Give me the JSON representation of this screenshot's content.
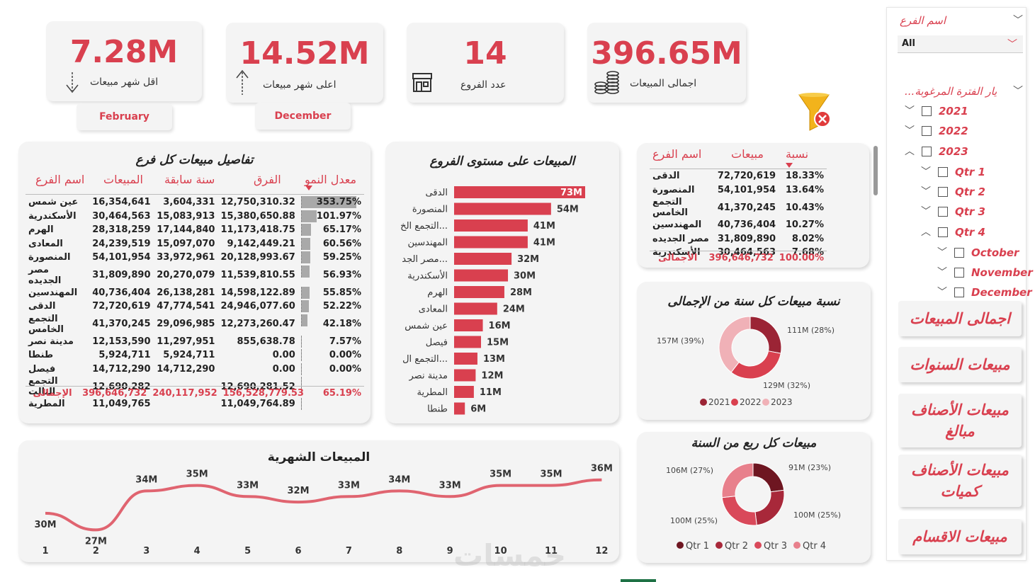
{
  "kpis": {
    "min_month": {
      "value": "7.28M",
      "label": "اقل شهر مبيعات",
      "month": "February"
    },
    "max_month": {
      "value": "14.52M",
      "label": "اعلى شهر مبيعات",
      "month": "December"
    },
    "branches": {
      "value": "14",
      "label": "عدد الفروع"
    },
    "total": {
      "value": "396.65M",
      "label": "اجمالى المبيعات"
    }
  },
  "details": {
    "title": "تفاصيل مبيعات كل فرع",
    "headers": [
      "معدل النمو",
      "الفرق",
      "سنة سابقة",
      "المبيعات",
      "اسم الفرع"
    ],
    "rows": [
      {
        "name": "عين شمس",
        "sales": "16,354,641",
        "prev": "3,604,331",
        "diff": "12,750,310.32",
        "growth": "353.75%",
        "g": 1.0
      },
      {
        "name": "الأسكندرية",
        "sales": "30,464,563",
        "prev": "15,083,913",
        "diff": "15,380,650.88",
        "growth": "101.97%",
        "g": 0.288
      },
      {
        "name": "الهرم",
        "sales": "28,318,259",
        "prev": "17,144,840",
        "diff": "11,173,418.75",
        "growth": "65.17%",
        "g": 0.184
      },
      {
        "name": "المعادى",
        "sales": "24,239,519",
        "prev": "15,097,070",
        "diff": "9,142,449.21",
        "growth": "60.56%",
        "g": 0.171
      },
      {
        "name": "المنصورة",
        "sales": "54,101,954",
        "prev": "33,972,961",
        "diff": "20,128,993.67",
        "growth": "59.25%",
        "g": 0.167
      },
      {
        "name": "مصر الجديده",
        "sales": "31,809,890",
        "prev": "20,270,079",
        "diff": "11,539,810.55",
        "growth": "56.93%",
        "g": 0.161
      },
      {
        "name": "المهندسين",
        "sales": "40,736,404",
        "prev": "26,138,281",
        "diff": "14,598,122.89",
        "growth": "55.85%",
        "g": 0.158
      },
      {
        "name": "الدقى",
        "sales": "72,720,619",
        "prev": "47,774,541",
        "diff": "24,946,077.60",
        "growth": "52.22%",
        "g": 0.148
      },
      {
        "name": "التجمع الخامس",
        "sales": "41,370,245",
        "prev": "29,096,985",
        "diff": "12,273,260.47",
        "growth": "42.18%",
        "g": 0.119
      },
      {
        "name": "مدينة نصر",
        "sales": "12,153,590",
        "prev": "11,297,951",
        "diff": "855,638.78",
        "growth": "7.57%",
        "g": 0.021
      },
      {
        "name": "طنطا",
        "sales": "5,924,711",
        "prev": "5,924,711",
        "diff": "0.00",
        "growth": "0.00%",
        "g": 0
      },
      {
        "name": "فيصل",
        "sales": "14,712,290",
        "prev": "14,712,290",
        "diff": "0.00",
        "growth": "0.00%",
        "g": 0
      },
      {
        "name": "التجمع التالت",
        "sales": "12,690,282",
        "prev": "",
        "diff": "12,690,281.52",
        "growth": "",
        "g": 0
      },
      {
        "name": "المطرية",
        "sales": "11,049,765",
        "prev": "",
        "diff": "11,049,764.89",
        "growth": "",
        "g": 0
      }
    ],
    "total": {
      "name": "الإجمالى",
      "sales": "396,646,732",
      "prev": "240,117,952",
      "diff": "156,528,779.53",
      "growth": "65.19%"
    }
  },
  "branch_chart": {
    "title": "المبيعات على مستوى الفروع",
    "chart_data": {
      "type": "bar",
      "categories": [
        "الدقى",
        "المنصورة",
        "التجمع الخ...",
        "المهندسين",
        "مصر الجد...",
        "الأسكندرية",
        "الهرم",
        "المعادى",
        "عين شمس",
        "فيصل",
        "التجمع ال...",
        "مدينة نصر",
        "المطرية",
        "طنطا"
      ],
      "values": [
        73,
        54,
        41,
        41,
        32,
        30,
        28,
        24,
        16,
        15,
        13,
        12,
        11,
        6
      ],
      "labels": [
        "73M",
        "54M",
        "41M",
        "41M",
        "32M",
        "30M",
        "28M",
        "24M",
        "16M",
        "15M",
        "13M",
        "12M",
        "11M",
        "6M"
      ],
      "xlim": [
        0,
        73
      ]
    }
  },
  "share_table": {
    "headers": [
      "نسبة",
      "مبيعات",
      "اسم الفرع"
    ],
    "rows": [
      {
        "name": "الدقى",
        "sales": "72,720,619",
        "pct": "18.33%"
      },
      {
        "name": "المنصورة",
        "sales": "54,101,954",
        "pct": "13.64%"
      },
      {
        "name": "التجمع الخامس",
        "sales": "41,370,245",
        "pct": "10.43%"
      },
      {
        "name": "المهندسين",
        "sales": "40,736,404",
        "pct": "10.27%"
      },
      {
        "name": "مصر الجديده",
        "sales": "31,809,890",
        "pct": "8.02%"
      },
      {
        "name": "الأسكندرية",
        "sales": "30,464,563",
        "pct": "7.68%"
      }
    ],
    "total": {
      "name": "الأجمالى",
      "sales": "396,646,732",
      "pct": "100.00%"
    }
  },
  "year_chart": {
    "title": "نسبة مبيعات كل سنة من الإجمالى",
    "chart_data": {
      "type": "pie",
      "categories": [
        "2021",
        "2022",
        "2023"
      ],
      "values": [
        111,
        129,
        157
      ],
      "labels": [
        "111M (28%)",
        "129M (32%)",
        "157M (39%)"
      ],
      "colors": [
        "#9b2435",
        "#d9404f",
        "#f0b1b7"
      ]
    }
  },
  "quarter_chart": {
    "title": "مبيعات كل ربع من السنة",
    "chart_data": {
      "type": "pie",
      "categories": [
        "Qtr 1",
        "Qtr 2",
        "Qtr 3",
        "Qtr 4"
      ],
      "values": [
        91,
        100,
        100,
        106
      ],
      "labels": [
        "91M (23%)",
        "100M (25%)",
        "100M (25%)",
        "106M (27%)"
      ],
      "colors": [
        "#6e1621",
        "#a8283a",
        "#d9495a",
        "#e8808c"
      ]
    }
  },
  "monthly_chart": {
    "title": "المبيعات الشهرية",
    "chart_data": {
      "type": "line",
      "x": [
        1,
        2,
        3,
        4,
        5,
        6,
        7,
        8,
        9,
        10,
        11,
        12
      ],
      "values": [
        30,
        27,
        34,
        35,
        33,
        32,
        33,
        34,
        33,
        35,
        35,
        36
      ],
      "labels": [
        "30M",
        "27M",
        "34M",
        "35M",
        "33M",
        "32M",
        "33M",
        "34M",
        "33M",
        "35M",
        "35M",
        "36M"
      ]
    }
  },
  "slicer": {
    "branch_label": "اسم الفرع",
    "branch_value": "All",
    "period_label": "...يار الفترة المرغوبة",
    "items": [
      "2021",
      "2022",
      "2023",
      "Qtr 1",
      "Qtr 2",
      "Qtr 3",
      "Qtr 4",
      "October",
      "November",
      "December"
    ]
  },
  "nav": [
    "اجمالى المبيعات",
    "مبيعات السنوات",
    "مبيعات الأصناف مبالغ",
    "مبيعات الأصناف كميات",
    "مبيعات الاقسام"
  ],
  "watermark": "خمسات",
  "colors": {
    "accent": "#d9404f",
    "bar": "#d9404f"
  }
}
